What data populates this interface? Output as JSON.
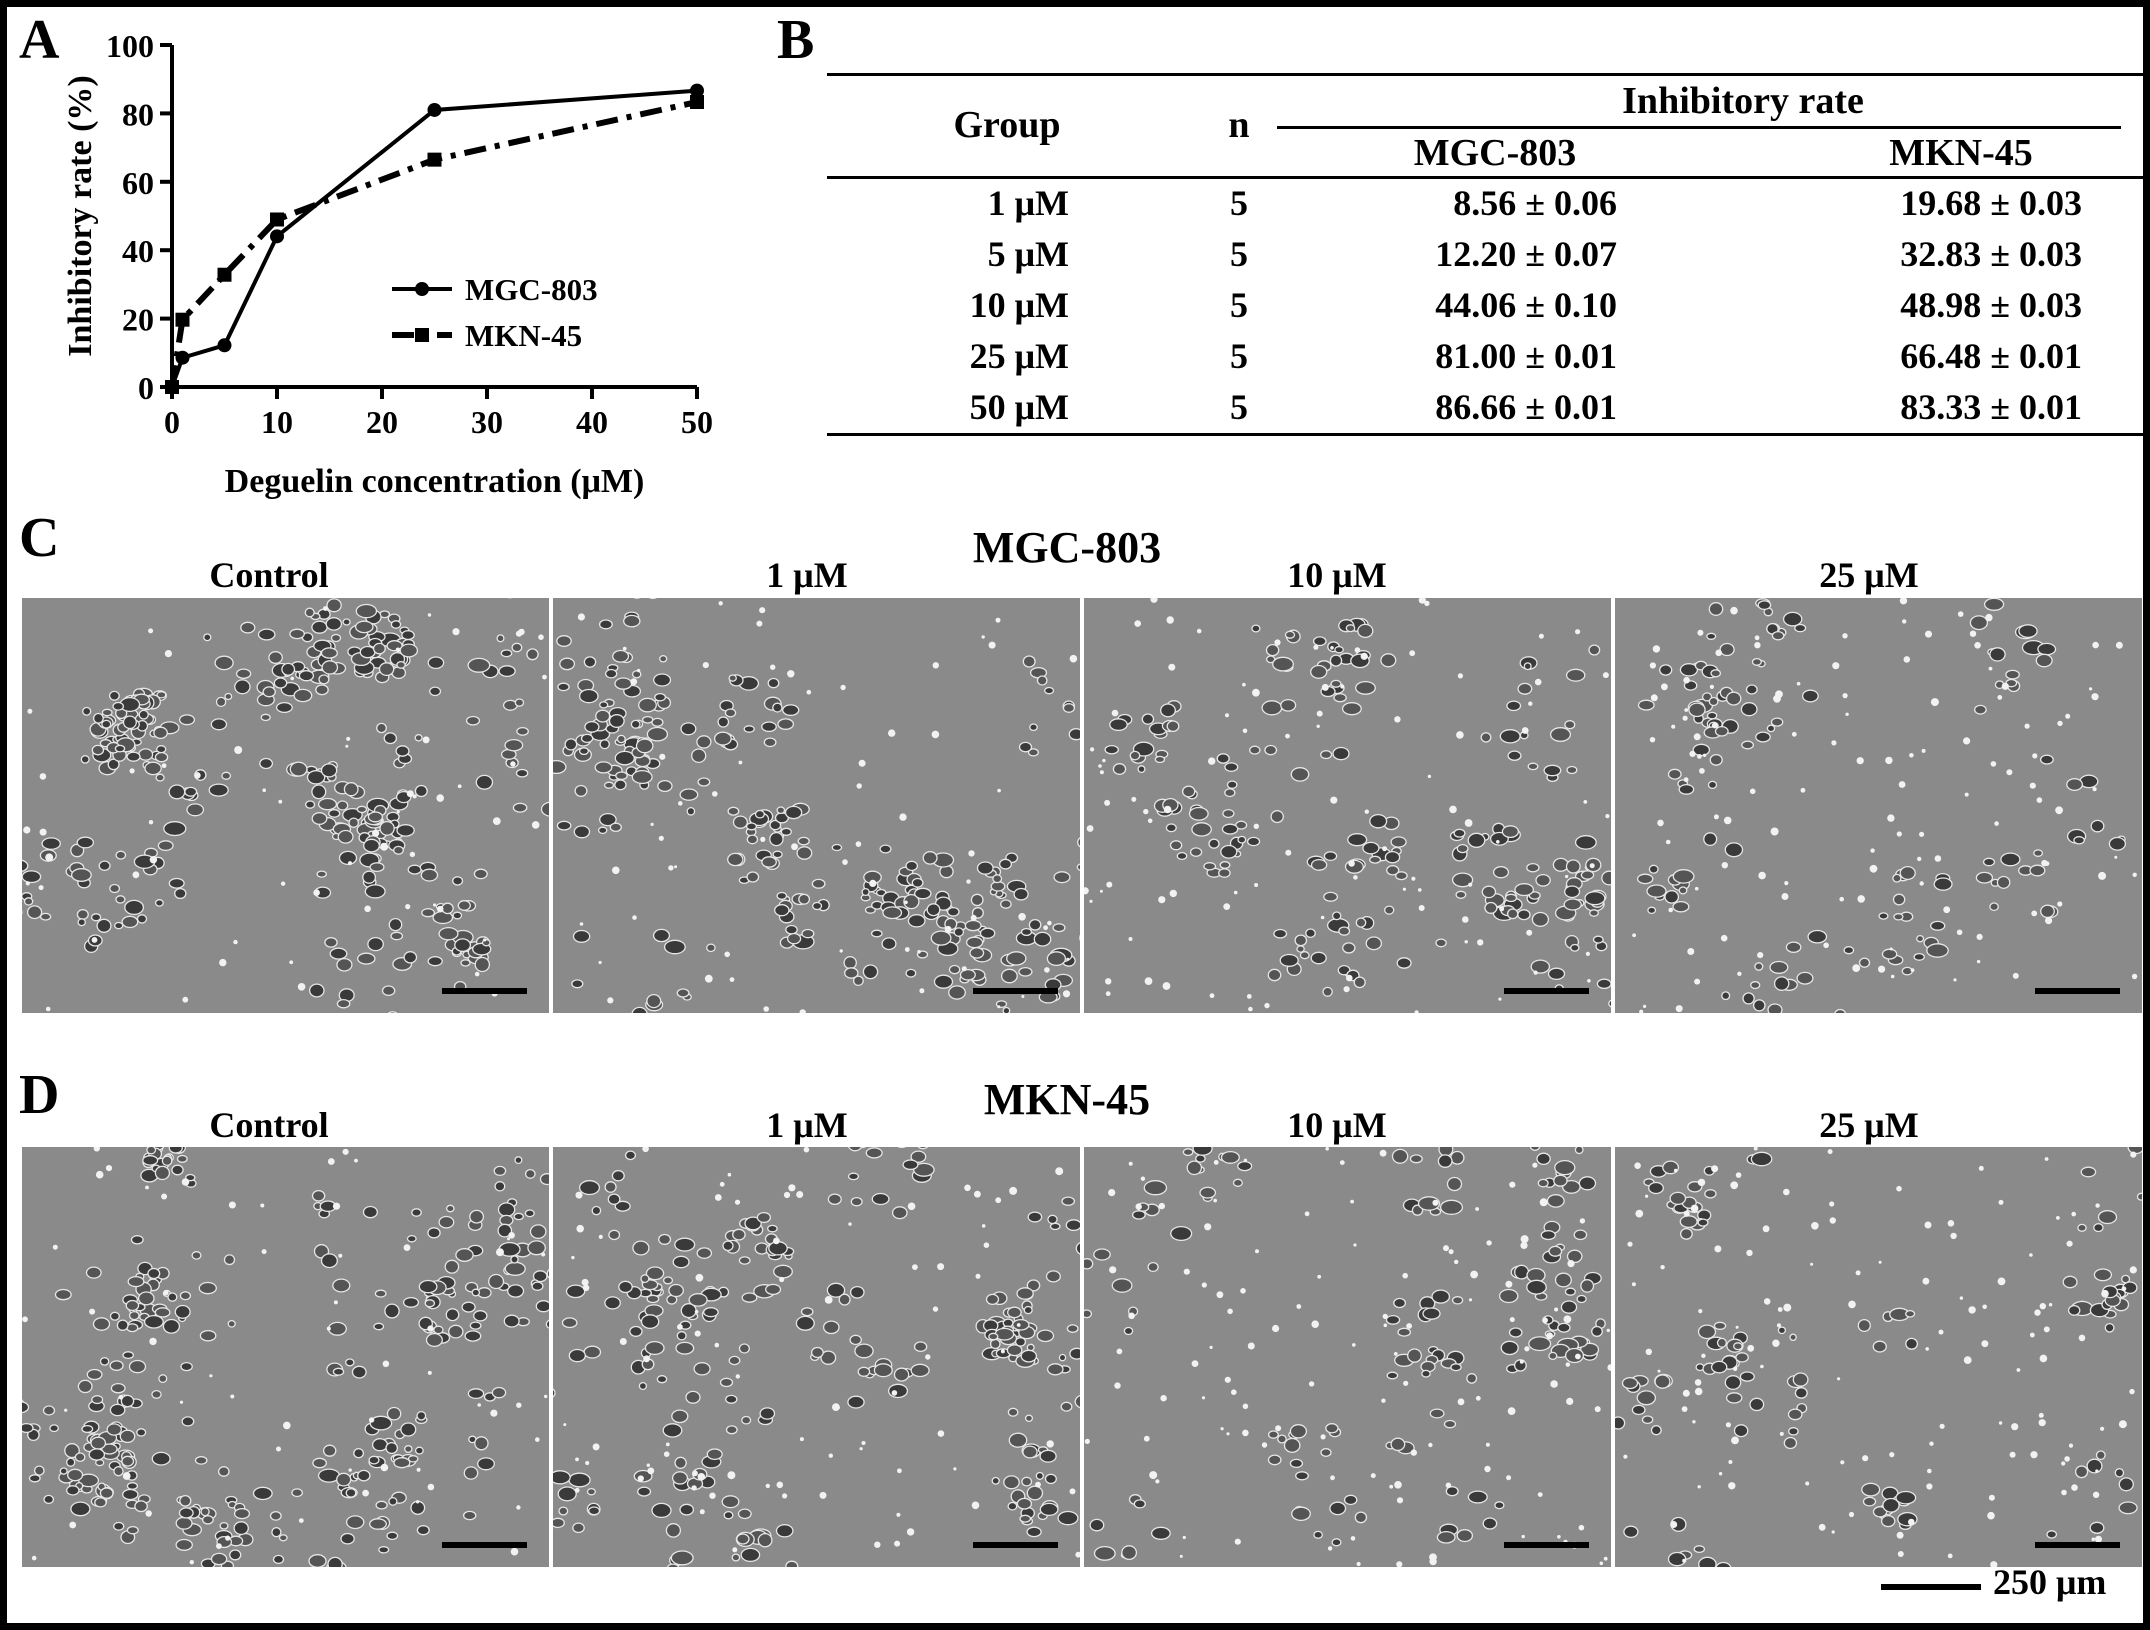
{
  "panel_a": {
    "letter": "A",
    "chart_data": {
      "type": "line",
      "title": "",
      "xlabel": "Deguelin concentration (μM)",
      "ylabel": "Inhibitory rate (%)",
      "xlim": [
        0,
        50
      ],
      "ylim": [
        0,
        100
      ],
      "xticks": [
        0,
        10,
        20,
        30,
        40,
        50
      ],
      "yticks": [
        0,
        20,
        40,
        60,
        80,
        100
      ],
      "grid": false,
      "legend_position": "center-right",
      "x": [
        0,
        1,
        5,
        10,
        25,
        50
      ],
      "series": [
        {
          "name": "MGC-803",
          "values": [
            0,
            8.56,
            12.2,
            44.06,
            81.0,
            86.66
          ],
          "marker": "circle",
          "line_style": "solid"
        },
        {
          "name": "MKN-45",
          "values": [
            0,
            19.68,
            32.83,
            48.98,
            66.48,
            83.33
          ],
          "marker": "square",
          "line_style": "dash-dot"
        }
      ]
    }
  },
  "panel_b": {
    "letter": "B",
    "header": {
      "group": "Group",
      "n": "n",
      "span": "Inhibitory rate",
      "col1": "MGC-803",
      "col2": "MKN-45"
    },
    "rows": [
      {
        "group": "1 μM",
        "n": "5",
        "mgc": "8.56 ± 0.06",
        "mkn": "19.68 ± 0.03"
      },
      {
        "group": "5 μM",
        "n": "5",
        "mgc": "12.20 ± 0.07",
        "mkn": "32.83 ± 0.03"
      },
      {
        "group": "10 μM",
        "n": "5",
        "mgc": "44.06 ± 0.10",
        "mkn": "48.98 ± 0.03"
      },
      {
        "group": "25 μM",
        "n": "5",
        "mgc": "81.00 ± 0.01",
        "mkn": "66.48 ± 0.01"
      },
      {
        "group": "50 μM",
        "n": "5",
        "mgc": "86.66 ± 0.01",
        "mkn": "83.33 ± 0.01"
      }
    ]
  },
  "panel_c": {
    "letter": "C",
    "title": "MGC-803",
    "images": [
      {
        "label": "Control",
        "cell_density": 0.85
      },
      {
        "label": "1 μM",
        "cell_density": 0.8
      },
      {
        "label": "10 μM",
        "cell_density": 0.55
      },
      {
        "label": "25 μM",
        "cell_density": 0.35
      }
    ]
  },
  "panel_d": {
    "letter": "D",
    "title": "MKN-45",
    "images": [
      {
        "label": "Control",
        "cell_density": 0.85
      },
      {
        "label": "1 μM",
        "cell_density": 0.65
      },
      {
        "label": "10 μM",
        "cell_density": 0.35
      },
      {
        "label": "25 μM",
        "cell_density": 0.3
      }
    ]
  },
  "scale_bar": {
    "label": "250 μm"
  }
}
